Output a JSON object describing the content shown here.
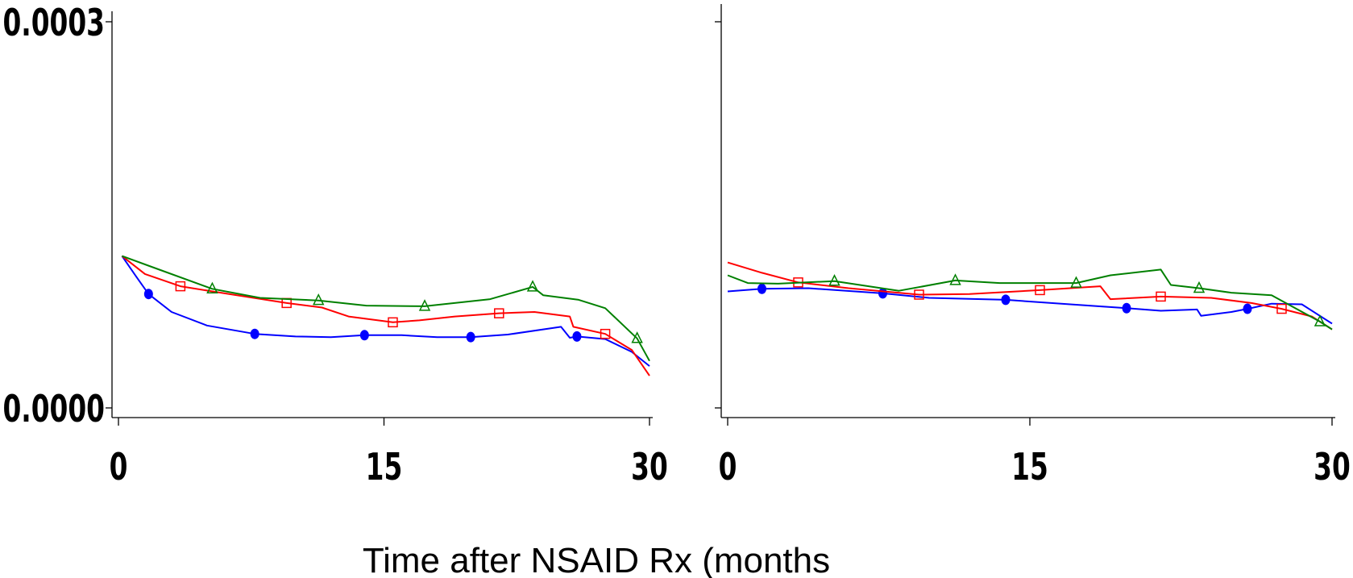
{
  "xlabel": "Time after NSAID Rx (months",
  "colors": {
    "blue": "#0000ff",
    "red": "#ff0000",
    "green": "#008000"
  },
  "chart_data": [
    {
      "type": "line",
      "title": "",
      "xlim": [
        0,
        30
      ],
      "ylim": [
        0,
        0.0003
      ],
      "x_ticks": [
        "0",
        "15",
        "30"
      ],
      "y_ticks": [
        "0.0000",
        "0.0003"
      ],
      "grid": false,
      "series": [
        {
          "color": "#0000ff",
          "marker": "filled-circle",
          "x": [
            0.2,
            1,
            1.7,
            3,
            5,
            7.7,
            10,
            12,
            13.9,
            16,
            18,
            19.9,
            22,
            24.5,
            25,
            25.5,
            25.9,
            27.5,
            29,
            30
          ],
          "y": [
            0.000118,
            0.000102,
            8.85e-05,
            7.45e-05,
            6.4e-05,
            5.75e-05,
            5.55e-05,
            5.5e-05,
            5.65e-05,
            5.65e-05,
            5.5e-05,
            5.5e-05,
            5.7e-05,
            6.2e-05,
            6.3e-05,
            5.45e-05,
            5.55e-05,
            5.35e-05,
            4.35e-05,
            3.25e-05
          ],
          "marker_x": [
            1.7,
            7.7,
            13.9,
            19.9,
            25.9
          ]
        },
        {
          "color": "#ff0000",
          "marker": "open-square",
          "x": [
            0.2,
            1.5,
            3.5,
            6,
            9.5,
            11.5,
            13,
            15.5,
            17,
            19,
            21.5,
            23.5,
            25.5,
            25.7,
            27.5,
            29,
            30
          ],
          "y": [
            0.000118,
            0.000104,
            9.45e-05,
            8.9e-05,
            8.15e-05,
            7.8e-05,
            7.1e-05,
            6.65e-05,
            6.8e-05,
            7.1e-05,
            7.35e-05,
            7.45e-05,
            7.1e-05,
            6.3e-05,
            5.75e-05,
            4.5e-05,
            2.5e-05
          ],
          "marker_x": [
            3.5,
            9.5,
            15.5,
            21.5,
            27.5
          ]
        },
        {
          "color": "#008000",
          "marker": "open-triangle",
          "x": [
            0.2,
            2,
            5.3,
            8,
            11.3,
            14,
            17.3,
            21,
            23.4,
            24,
            26,
            27.5,
            29.3,
            30
          ],
          "y": [
            0.000118,
            0.000109,
            9.25e-05,
            8.55e-05,
            8.35e-05,
            7.95e-05,
            7.9e-05,
            8.45e-05,
            9.4e-05,
            8.75e-05,
            8.4e-05,
            7.75e-05,
            5.4e-05,
            3.65e-05
          ],
          "marker_x": [
            5.3,
            11.3,
            17.3,
            23.4,
            29.3
          ]
        }
      ]
    },
    {
      "type": "line",
      "title": "",
      "xlim": [
        0,
        30
      ],
      "ylim": [
        0,
        0.0003
      ],
      "x_ticks": [
        "0",
        "15",
        "30"
      ],
      "y_ticks": [],
      "grid": false,
      "series": [
        {
          "color": "#0000ff",
          "marker": "filled-circle",
          "x": [
            0,
            1.7,
            4,
            7.7,
            10,
            13.8,
            17,
            19.8,
            21.5,
            23.3,
            23.5,
            25,
            25.8,
            27,
            28.5,
            30
          ],
          "y": [
            9.05e-05,
            9.25e-05,
            9.3e-05,
            8.9e-05,
            8.55e-05,
            8.4e-05,
            8.05e-05,
            7.75e-05,
            7.55e-05,
            7.65e-05,
            7.15e-05,
            7.45e-05,
            7.7e-05,
            8.1e-05,
            8.05e-05,
            6.55e-05
          ],
          "marker_x": [
            1.7,
            7.7,
            13.8,
            19.8,
            25.8
          ]
        },
        {
          "color": "#ff0000",
          "marker": "open-square",
          "x": [
            0,
            1.7,
            3.5,
            6,
            9.5,
            12,
            15.5,
            18.5,
            19,
            21.5,
            24,
            26,
            27.5,
            29,
            30
          ],
          "y": [
            0.000113,
            0.000105,
            9.75e-05,
            9.3e-05,
            8.8e-05,
            8.85e-05,
            9.15e-05,
            9.45e-05,
            8.45e-05,
            8.65e-05,
            8.55e-05,
            8.15e-05,
            7.7e-05,
            7.1e-05,
            6.1e-05
          ],
          "marker_x": [
            3.5,
            9.5,
            15.5,
            21.5,
            27.5
          ]
        },
        {
          "color": "#008000",
          "marker": "open-triangle",
          "x": [
            0,
            1,
            2.5,
            5.3,
            8.5,
            11.3,
            13.5,
            17.3,
            19,
            21.5,
            22,
            23.4,
            25,
            27,
            29.4,
            30
          ],
          "y": [
            0.000103,
            9.7e-05,
            9.65e-05,
            9.85e-05,
            9.1e-05,
            9.9e-05,
            9.7e-05,
            9.7e-05,
            0.000103,
            0.0001075,
            9.55e-05,
            9.3e-05,
            8.95e-05,
            8.75e-05,
            6.7e-05,
            6.1e-05
          ],
          "marker_x": [
            5.3,
            11.3,
            17.3,
            23.4,
            29.4
          ]
        }
      ]
    }
  ]
}
